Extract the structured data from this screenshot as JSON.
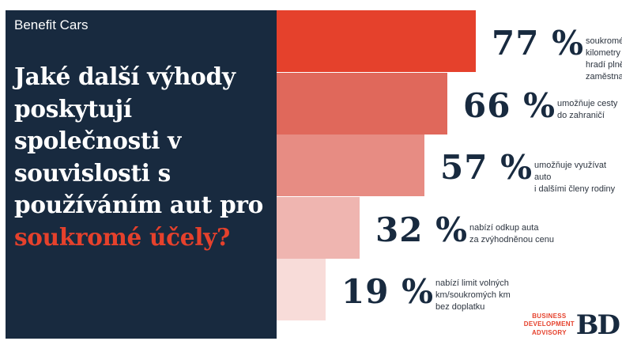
{
  "header": {
    "tag": "Benefit Cars",
    "headline_main": "Jaké další výhody poskytují společnosti v souvislosti s používáním aut pro ",
    "headline_accent": "soukromé účely?"
  },
  "chart_data": {
    "type": "bar",
    "orientation": "horizontal",
    "unit": "%",
    "categories": [
      "soukromé kilometry hradí plně zaměstnanci",
      "umožňuje cesty do zahraničí",
      "umožňuje využívat auto i dalšími členy rodiny",
      "nabízí odkup auta za zvýhodněnou cenu",
      "nabízí limit volných km/soukromých km bez doplatku"
    ],
    "values": [
      77,
      66,
      57,
      32,
      19
    ],
    "value_labels": [
      "77 %",
      "66 %",
      "57 %",
      "32 %",
      "19 %"
    ],
    "descriptions": [
      "soukromé kilometry\nhradí plně zaměstnanci",
      "umožňuje cesty\ndo zahraničí",
      "umožňuje využívat auto\ni dalšími členy rodiny",
      "nabízí odkup auta\nza zvýhodněnou cenu",
      "nabízí limit volných\nkm/soukromých km\nbez doplatku"
    ],
    "colors": [
      "#e5412c",
      "#e0685b",
      "#e78c83",
      "#efb5b0",
      "#f8dcd9"
    ],
    "xlim": [
      0,
      100
    ],
    "grid": false,
    "legend": "none"
  },
  "logo": {
    "text": "BUSINESS\nDEVELOPMENT\nADVISORY",
    "mark": "BD"
  },
  "colors": {
    "panel": "#182a3f",
    "accent": "#e5412c",
    "value_text": "#182a3f"
  }
}
